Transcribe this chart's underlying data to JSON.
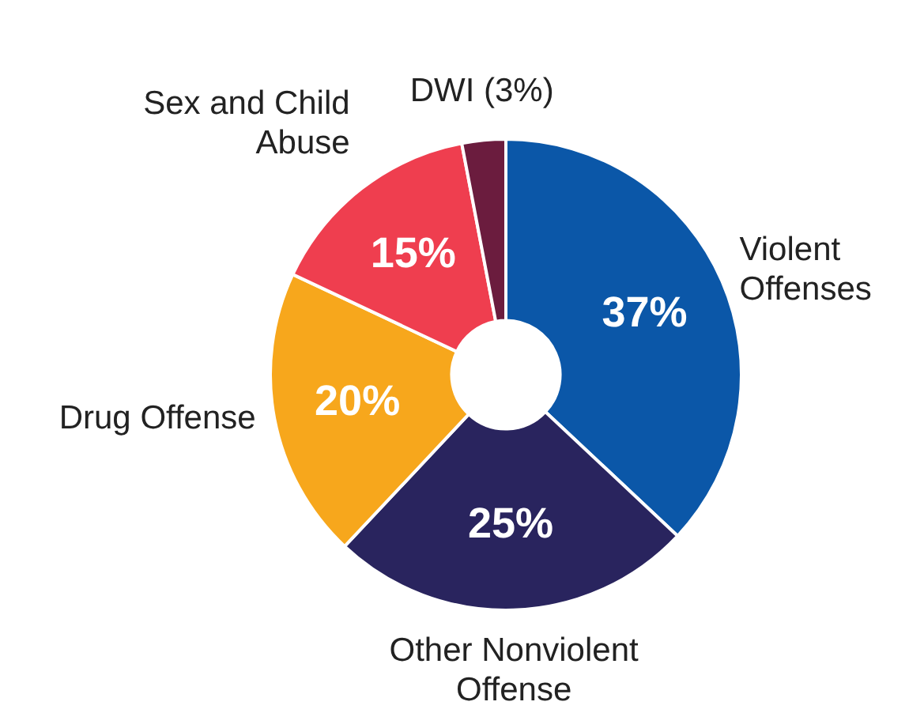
{
  "chart_data": {
    "type": "donut",
    "categories": [
      "Violent Offenses",
      "Other Nonviolent Offense",
      "Drug Offense",
      "Sex and Child Abuse",
      "DWI (3%)"
    ],
    "values": [
      37,
      25,
      20,
      15,
      3
    ],
    "colors": [
      "#0b57a8",
      "#29245e",
      "#f7a71c",
      "#ef3e4f",
      "#6b1c3e"
    ],
    "value_labels": [
      "37%",
      "25%",
      "20%",
      "15%",
      null
    ],
    "legend": false
  }
}
